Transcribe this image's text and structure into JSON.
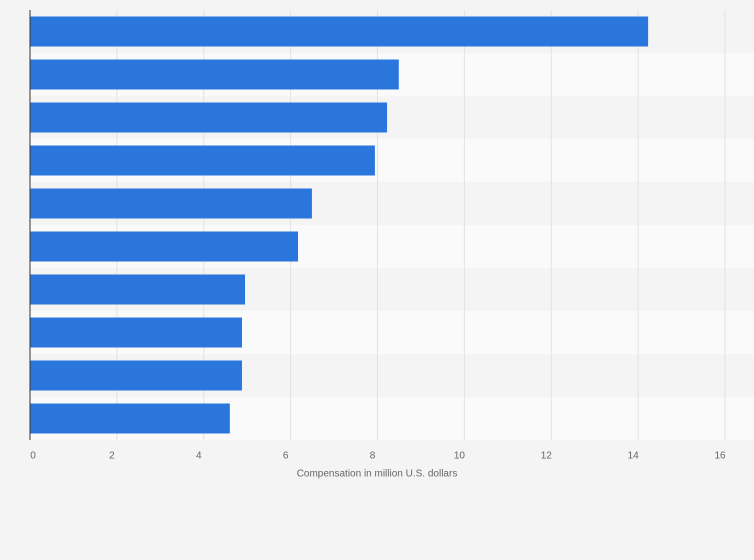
{
  "chart_data": {
    "type": "bar",
    "orientation": "horizontal",
    "x_label": "Compensation in million U.S. dollars",
    "categories": [
      null,
      null,
      null,
      null,
      null,
      null,
      null,
      null,
      null,
      null
    ],
    "values": [
      14.23,
      8.49,
      8.22,
      7.94,
      6.49,
      6.17,
      4.95,
      4.88,
      4.88,
      4.6
    ],
    "color": "#2a76dd",
    "xlim": [
      0,
      16
    ],
    "xticks": [
      0,
      2,
      4,
      6,
      8,
      10,
      12,
      14,
      16
    ],
    "grid": true
  }
}
